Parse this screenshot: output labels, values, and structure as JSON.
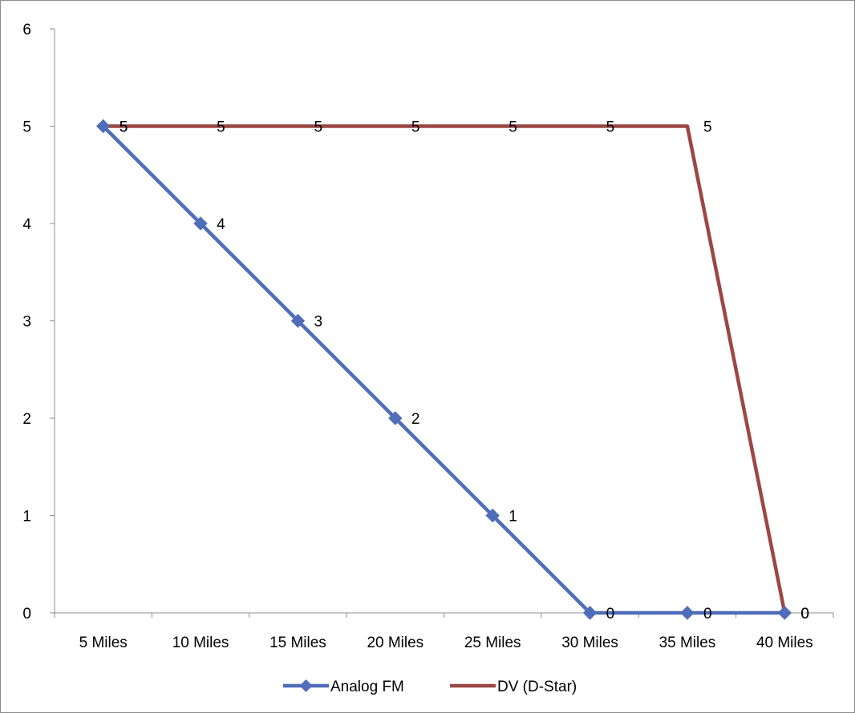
{
  "chart_data": {
    "type": "line",
    "title": "",
    "xlabel": "",
    "ylabel": "",
    "categories": [
      "5 Miles",
      "10 Miles",
      "15 Miles",
      "20 Miles",
      "25 Miles",
      "30 Miles",
      "35 Miles",
      "40 Miles"
    ],
    "ylim": [
      0,
      6
    ],
    "yticks": [
      0,
      1,
      2,
      3,
      4,
      5,
      6
    ],
    "grid": false,
    "legend": "bottom",
    "series": [
      {
        "name": "Analog FM",
        "values": [
          5,
          4,
          3,
          2,
          1,
          0,
          0,
          0
        ],
        "color": "#4f6db8",
        "marker": "diamond"
      },
      {
        "name": "DV (D-Star)",
        "values": [
          5,
          5,
          5,
          5,
          5,
          5,
          5,
          0
        ],
        "color": "#9b4743",
        "marker": "none"
      }
    ],
    "data_labels": true
  }
}
